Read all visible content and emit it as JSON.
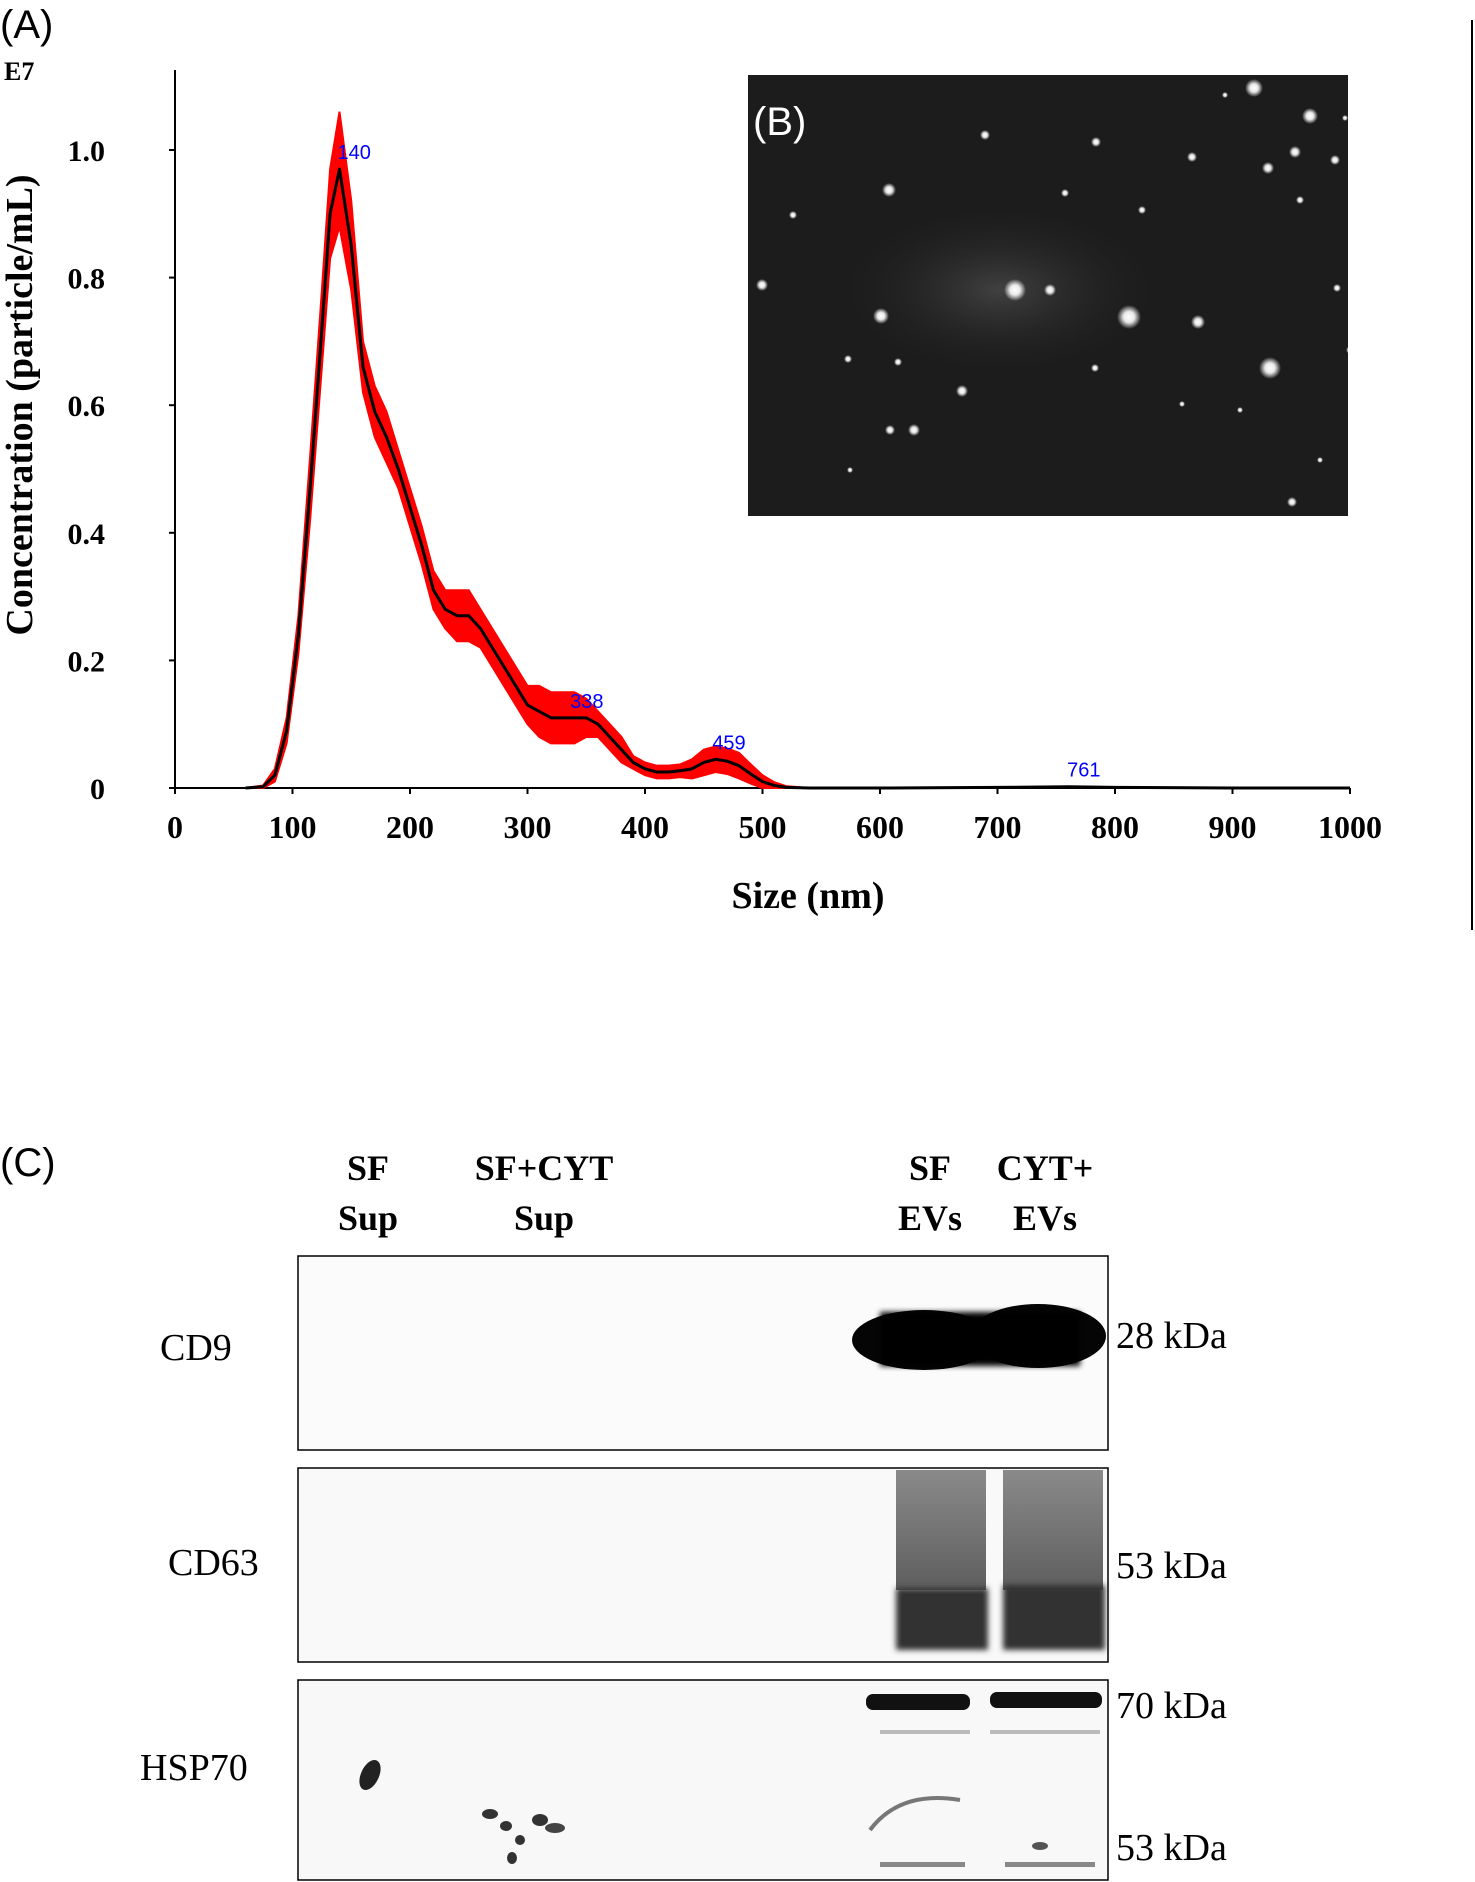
{
  "panels": {
    "a_label": "(A)",
    "b_label": "(B)",
    "c_label": "(C)"
  },
  "chart_data": {
    "type": "area",
    "title": "",
    "xlabel": "Size (nm)",
    "ylabel": "Concentration (particle/mL)",
    "y_multiplier": "E7",
    "xlim": [
      0,
      1000
    ],
    "ylim": [
      0,
      1.1
    ],
    "x_ticks": [
      "0",
      "100",
      "200",
      "300",
      "400",
      "500",
      "600",
      "700",
      "800",
      "900",
      "1000"
    ],
    "y_ticks": [
      "0",
      "0.2",
      "0.4",
      "0.6",
      "0.8",
      "1.0"
    ],
    "grid": false,
    "series": [
      {
        "color": "#000000",
        "band_color": "#ff0000",
        "x": [
          60,
          75,
          85,
          95,
          105,
          115,
          125,
          132,
          140,
          150,
          160,
          170,
          180,
          190,
          200,
          210,
          220,
          230,
          240,
          250,
          260,
          270,
          280,
          290,
          300,
          310,
          320,
          330,
          340,
          350,
          360,
          370,
          380,
          390,
          400,
          410,
          420,
          430,
          440,
          450,
          460,
          470,
          480,
          490,
          500,
          510,
          520,
          540,
          600,
          700,
          761,
          800,
          900,
          1000
        ],
        "y": [
          0,
          0.002,
          0.02,
          0.09,
          0.24,
          0.47,
          0.72,
          0.9,
          0.97,
          0.85,
          0.66,
          0.59,
          0.55,
          0.5,
          0.44,
          0.38,
          0.31,
          0.28,
          0.27,
          0.27,
          0.25,
          0.22,
          0.19,
          0.16,
          0.13,
          0.12,
          0.11,
          0.11,
          0.11,
          0.11,
          0.1,
          0.08,
          0.06,
          0.04,
          0.03,
          0.025,
          0.025,
          0.027,
          0.03,
          0.04,
          0.045,
          0.042,
          0.035,
          0.022,
          0.01,
          0.004,
          0.001,
          0,
          0,
          0.001,
          0.002,
          0.001,
          0,
          0
        ],
        "err": [
          0,
          0.002,
          0.01,
          0.02,
          0.03,
          0.05,
          0.06,
          0.07,
          0.09,
          0.07,
          0.04,
          0.04,
          0.04,
          0.03,
          0.03,
          0.03,
          0.03,
          0.03,
          0.04,
          0.04,
          0.03,
          0.03,
          0.03,
          0.03,
          0.03,
          0.04,
          0.04,
          0.04,
          0.04,
          0.03,
          0.02,
          0.02,
          0.02,
          0.01,
          0.01,
          0.01,
          0.01,
          0.01,
          0.015,
          0.02,
          0.02,
          0.02,
          0.02,
          0.015,
          0.01,
          0.005,
          0.002,
          0,
          0,
          0,
          0,
          0,
          0,
          0
        ]
      }
    ],
    "peak_labels": [
      {
        "x": 140,
        "y": 0.97,
        "text": "140"
      },
      {
        "x": 338,
        "y": 0.11,
        "text": "338"
      },
      {
        "x": 459,
        "y": 0.045,
        "text": "459"
      },
      {
        "x": 761,
        "y": 0.002,
        "text": "761"
      }
    ],
    "peak_label_color": "#0000ff"
  },
  "blot": {
    "lane_headers": [
      {
        "line1": "SF",
        "line2": "Sup"
      },
      {
        "line1": "SF+CYT",
        "line2": "Sup"
      },
      {
        "line1": "SF",
        "line2": "EVs"
      },
      {
        "line1": "CYT+",
        "line2": "EVs"
      }
    ],
    "rows": [
      {
        "label": "CD9",
        "markers": [
          "28 kDa"
        ]
      },
      {
        "label": "CD63",
        "markers": [
          "53 kDa"
        ]
      },
      {
        "label": "HSP70",
        "markers": [
          "70 kDa",
          "53 kDa"
        ]
      }
    ]
  }
}
